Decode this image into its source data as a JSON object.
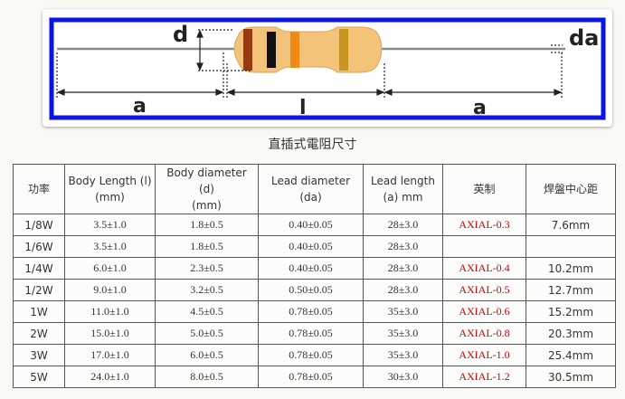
{
  "diagram": {
    "labels": {
      "d": "d",
      "da": "da",
      "a_left": "a",
      "l": "l",
      "a_right": "a"
    },
    "colors": {
      "frame": "#0a14e6",
      "body": "#f3c37a",
      "body_edge": "#d9a35a",
      "lead": "#8a8a8a",
      "band1": "#9a3a12",
      "band2": "#111111",
      "band3": "#f08a16",
      "band4": "#c8961e"
    }
  },
  "caption": "直插式電阻尺寸",
  "table": {
    "headers": [
      [
        "功率"
      ],
      [
        "Body Length (l)",
        "(mm)"
      ],
      [
        "Body diameter (d)",
        "(mm)"
      ],
      [
        "Lead diameter (da)"
      ],
      [
        "Lead length",
        "(a) mm"
      ],
      [
        "英制"
      ],
      [
        "焊盤中心距"
      ]
    ],
    "rows": [
      [
        "1/8W",
        "3.5±1.0",
        "1.8±0.5",
        "0.40±0.05",
        "28±3.0",
        "AXIAL-0.3",
        "7.6mm"
      ],
      [
        "1/6W",
        "3.5±1.0",
        "1.8±0.5",
        "0.40±0.05",
        "28±3.0",
        "",
        ""
      ],
      [
        "1/4W",
        "6.0±1.0",
        "2.3±0.5",
        "0.40±0.05",
        "28±3.0",
        "AXIAL-0.4",
        "10.2mm"
      ],
      [
        "1/2W",
        "9.0±1.0",
        "3.2±0.5",
        "0.50±0.05",
        "28±3.0",
        "AXIAL-0.5",
        "12.7mm"
      ],
      [
        "1W",
        "11.0±1.0",
        "4.5±0.5",
        "0.78±0.05",
        "35±3.0",
        "AXIAL-0.6",
        "15.2mm"
      ],
      [
        "2W",
        "15.0±1.0",
        "5.0±0.5",
        "0.78±0.05",
        "35±3.0",
        "AXIAL-0.8",
        "20.3mm"
      ],
      [
        "3W",
        "17.0±1.0",
        "6.0±0.5",
        "0.78±0.05",
        "35±3.0",
        "AXIAL-1.0",
        "25.4mm"
      ],
      [
        "5W",
        "24.0±1.0",
        "8.0±0.5",
        "0.78±0.05",
        "30±3.0",
        "AXIAL-1.2",
        "30.5mm"
      ]
    ]
  }
}
